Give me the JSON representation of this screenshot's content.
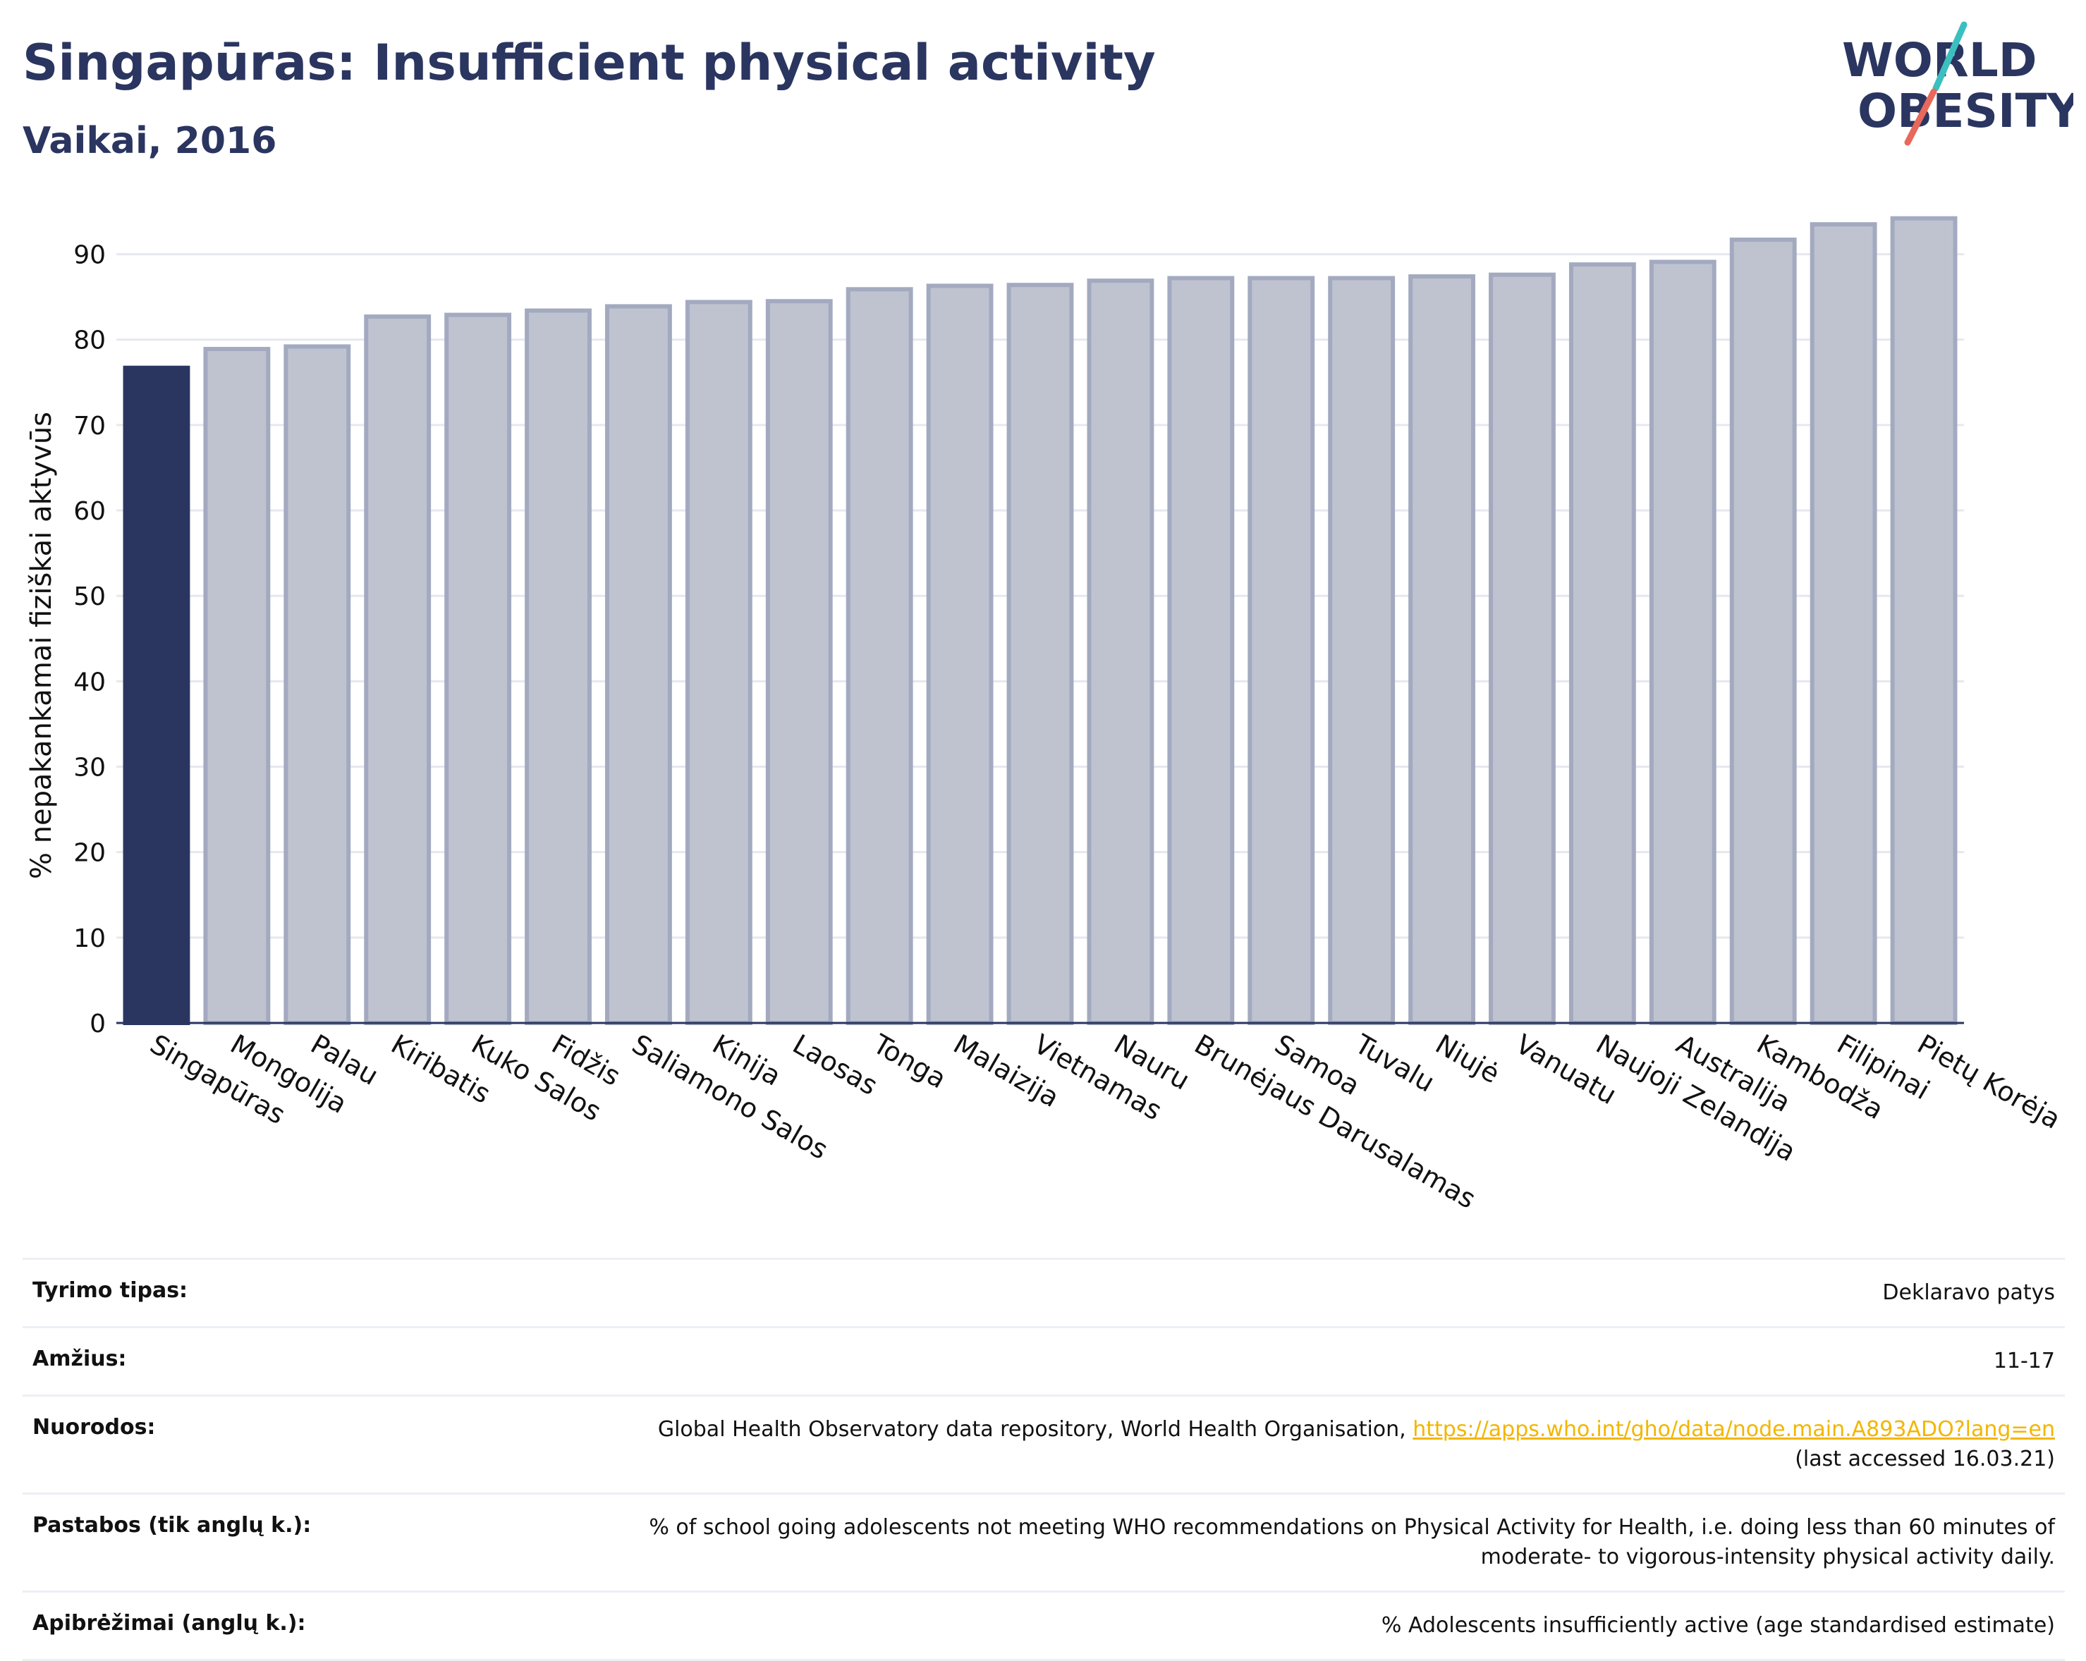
{
  "header": {
    "title": "Singapūras: Insufficient physical activity",
    "subtitle": "Vaikai, 2016"
  },
  "logo": {
    "line1": "WORLD",
    "line2": "OBESITY"
  },
  "colors": {
    "highlight": "#2a3560",
    "bar_fill": "#bfc3d0",
    "bar_stroke": "#a3aac0",
    "axis": "#2a3560",
    "grid": "#e6e8f0",
    "logo_teal": "#3bbfbf",
    "logo_red": "#e8685a",
    "link": "#f2b600"
  },
  "chart_data": {
    "type": "bar",
    "ylabel": "% nepakankamai fiziškai aktyvūs",
    "ylim": [
      0,
      95
    ],
    "yticks": [
      0,
      10,
      20,
      30,
      40,
      50,
      60,
      70,
      80,
      90
    ],
    "highlight_category": "Singapūras",
    "grid": true,
    "categories": [
      "Singapūras",
      "Mongolija",
      "Palau",
      "Kiribatis",
      "Kuko Salos",
      "Fidžis",
      "Saliamono Salos",
      "Kinija",
      "Laosas",
      "Tonga",
      "Malaizija",
      "Vietnamas",
      "Nauru",
      "Brunėjaus Darusalamas",
      "Samoa",
      "Tuvalu",
      "Niujė",
      "Vanuatu",
      "Naujoji Zelandija",
      "Australija",
      "Kambodža",
      "Filipinai",
      "Pietų Korėja"
    ],
    "values": [
      76.7,
      78.9,
      79.2,
      82.7,
      82.9,
      83.4,
      83.9,
      84.4,
      84.5,
      85.9,
      86.3,
      86.4,
      86.9,
      87.2,
      87.2,
      87.2,
      87.4,
      87.6,
      88.8,
      89.1,
      91.7,
      93.5,
      94.2
    ]
  },
  "info": {
    "rows": [
      {
        "label": "Tyrimo tipas:",
        "value": "Deklaravo patys"
      },
      {
        "label": "Amžius:",
        "value": "11-17"
      },
      {
        "label": "Nuorodos:",
        "value": "Global Health Observatory data repository, World Health Organisation,",
        "link": "https://apps.who.int/gho/data/node.main.A893ADO?lang=en",
        "value2": "(last accessed 16.03.21)"
      },
      {
        "label": "Pastabos (tik anglų k.):",
        "value": "% of school going adolescents not meeting WHO recommendations on Physical Activity for Health, i.e. doing less than 60 minutes of",
        "value2": "moderate- to vigorous-intensity physical activity daily."
      },
      {
        "label": "Apibrėžimai (anglų k.):",
        "value": "% Adolescents insufficiently active (age standardised estimate)"
      }
    ]
  }
}
